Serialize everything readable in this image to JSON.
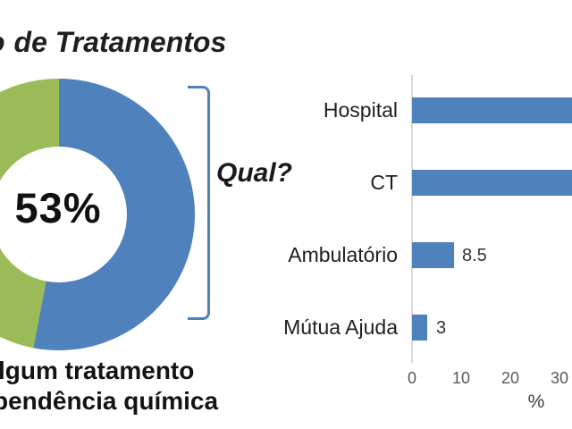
{
  "title": {
    "cut_letter": "o",
    "text": "de Tratamentos"
  },
  "bracket_label": "Qual?",
  "donut_caption": [
    "lgum tratamento",
    "pendência química"
  ],
  "colors": {
    "blue": "#4F81BD",
    "green": "#9BBB59",
    "axis_line": "#D9D9D9",
    "tick_text": "#595959",
    "text": "#1F1F1F"
  },
  "chart_data": [
    {
      "type": "pie",
      "subtype": "donut",
      "title": "de Tratamentos (title clipped at left edge of image)",
      "center_label": "53%",
      "slices": [
        {
          "label": "53%",
          "value": 53,
          "color": "#4F81BD"
        },
        {
          "label": "",
          "value": 47,
          "color": "#9BBB59"
        }
      ],
      "annotation": "Qual?",
      "caption": "lgum tratamento / pendência química (caption clipped at left edge of image)",
      "layout": "donut clipped at left edge; blue slice starts at 12 o'clock going clockwise"
    },
    {
      "type": "bar",
      "orientation": "horizontal",
      "categories": [
        "Hospital",
        "CT",
        "Ambulatório",
        "Mútua Ajuda"
      ],
      "values": [
        36,
        36,
        8.5,
        3
      ],
      "clipped": [
        true,
        true,
        false,
        false
      ],
      "data_labels": [
        "",
        "",
        "8.5",
        "3"
      ],
      "value_note": "Hospital and CT bars extend past the right edge of the image (>32%); their value labels are not visible. 36 is a render estimate only.",
      "xticks": [
        0,
        10,
        20,
        30
      ],
      "xlabel": "%",
      "xlim_visible": [
        0,
        33
      ],
      "bar_color": "#4F81BD",
      "grid": false,
      "legend": false
    }
  ]
}
